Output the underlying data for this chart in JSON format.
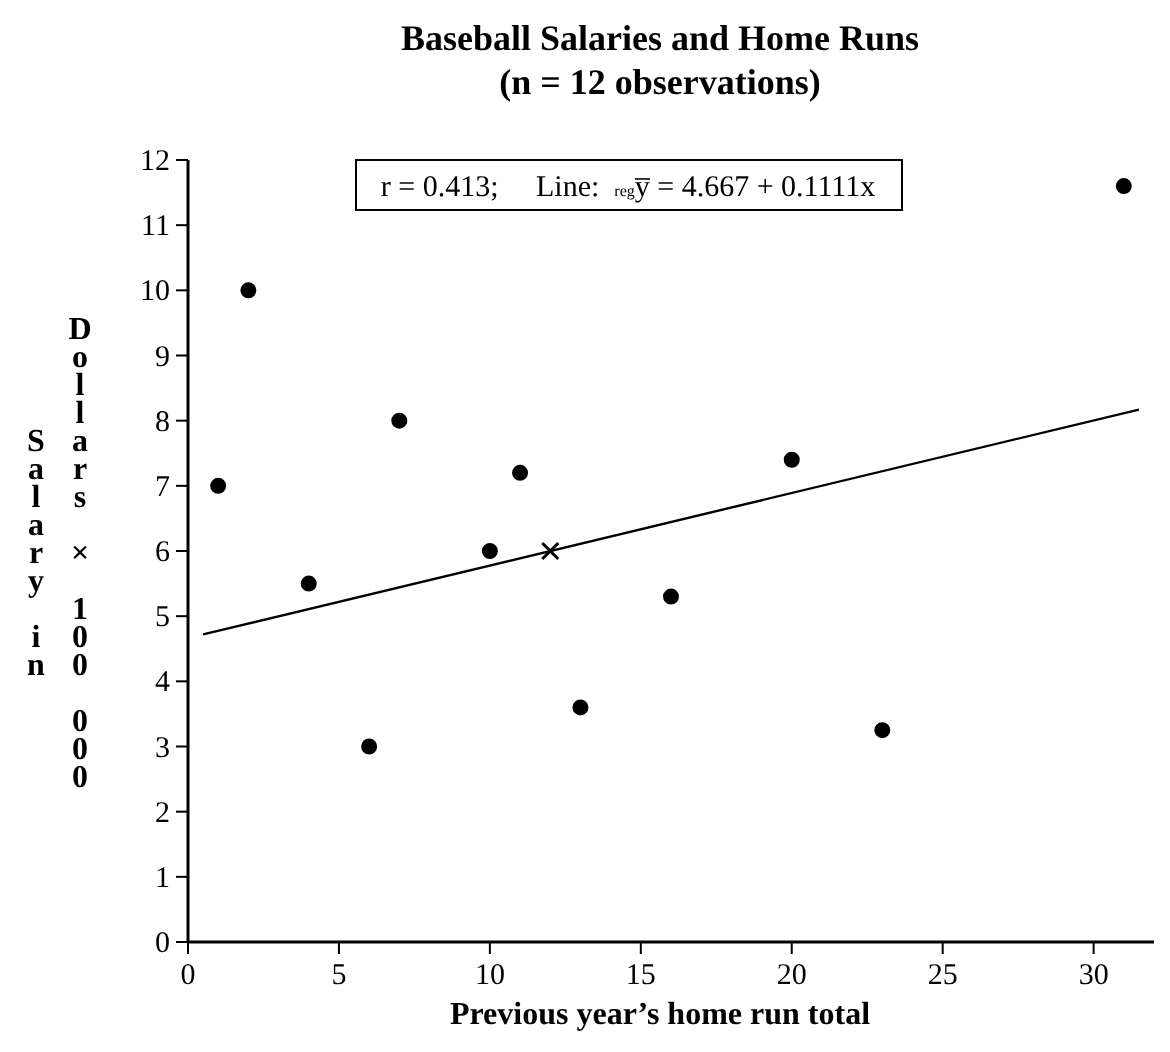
{
  "chart_data": {
    "type": "scatter",
    "title": "Baseball Salaries and Home Runs\n(n = 12 observations)",
    "xlabel": "Previous year’s home run total",
    "ylabel": "Salary in\nDollars × 100 000",
    "annotations": [
      "r = 0.413;     Line:  $_{reg}$y̅ = 4.667 + 0.1111x"
    ],
    "series": [
      {
        "color": "#000000",
        "marker": "circle",
        "x": [
          1,
          2,
          4,
          6,
          7,
          10,
          11,
          13,
          16,
          20
        ],
        "values": [
          7,
          10,
          5.5,
          3,
          8,
          6,
          7.2,
          3.6,
          5.3,
          7.4
        ]
      },
      {
        "color": "#000000",
        "marker": "circle",
        "x": [
          23,
          31
        ],
        "values": [
          3.25,
          11.6
        ]
      },
      {
        "type": "line",
        "color": "#000000",
        "marker": "none",
        "x": [
          0.5,
          31.5
        ],
        "values": [
          4.72,
          8.17
        ]
      },
      {
        "color": "#000000",
        "marker": "cross",
        "x": [
          12
        ],
        "values": [
          6
        ]
      }
    ],
    "xlim": [
      0,
      32
    ],
    "xticks": [
      0,
      5,
      10,
      15,
      20,
      25,
      30
    ],
    "ylim": [
      0,
      12
    ],
    "yticks": [
      0,
      1,
      2,
      3,
      4,
      5,
      6,
      7,
      8,
      9,
      10,
      11,
      12
    ],
    "grid": false
  }
}
